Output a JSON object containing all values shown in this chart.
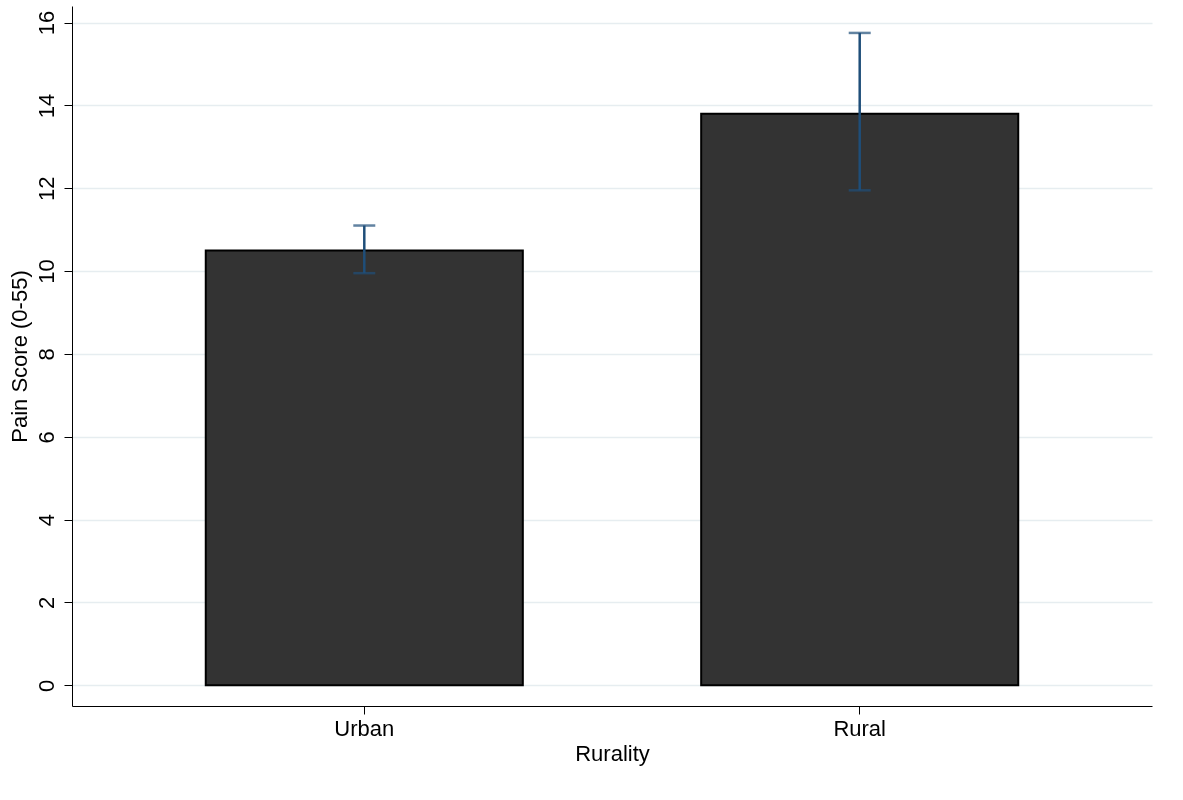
{
  "chart_data": {
    "type": "bar",
    "xlabel": "Rurality",
    "ylabel": "Pain Score (0-55)",
    "categories": [
      "Urban",
      "Rural"
    ],
    "series": [
      {
        "color": "#333333",
        "values": [
          10.5,
          13.8
        ],
        "errors": [
          [
            9.95,
            11.1
          ],
          [
            11.95,
            15.75
          ]
        ]
      }
    ],
    "ylim": [
      -0.5,
      16.4
    ],
    "yticks": [
      0,
      2,
      4,
      6,
      8,
      10,
      12,
      14,
      16
    ],
    "grid": "y"
  }
}
